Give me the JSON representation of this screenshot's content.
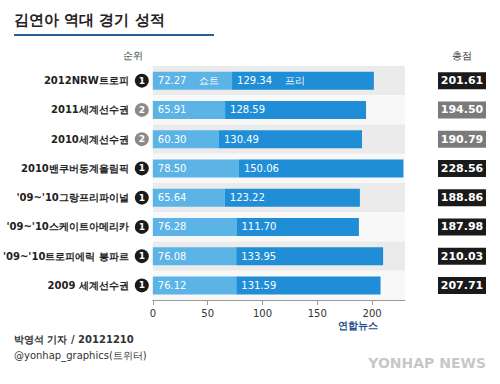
{
  "chart_data": {
    "type": "bar",
    "title": "김연아 역대 경기 성적",
    "orientation": "horizontal",
    "stacked": true,
    "data_labels": true,
    "grid": false,
    "categories": [
      "2012NRW트로피",
      "2011세계선수권",
      "2010세계선수권",
      "2010밴쿠버동계올림픽",
      "'09~'10그랑프리파이널",
      "'09~'10스케이트아메리카",
      "'09~'10트로피에릭 봉파르",
      "2009 세계선수권"
    ],
    "series": [
      {
        "name": "쇼트",
        "color": "#5bb3e6",
        "values": [
          72.27,
          65.91,
          60.3,
          78.5,
          65.64,
          76.28,
          76.08,
          76.12
        ],
        "value_labels": [
          "72.27",
          "65.91",
          "60.30",
          "78.50",
          "65.64",
          "76.28",
          "76.08",
          "76.12"
        ]
      },
      {
        "name": "프리",
        "color": "#1f8ed6",
        "values": [
          129.34,
          128.59,
          130.49,
          150.06,
          123.22,
          111.7,
          133.95,
          131.59
        ],
        "value_labels": [
          "129.34",
          "128.59",
          "130.49",
          "150.06",
          "123.22",
          "111.70",
          "133.95",
          "131.59"
        ]
      }
    ],
    "rank_title": "순위",
    "ranks": [
      1,
      2,
      2,
      1,
      1,
      1,
      1,
      1
    ],
    "total_title": "총점",
    "totals": [
      201.61,
      194.5,
      190.79,
      228.56,
      188.86,
      187.98,
      210.03,
      207.71
    ],
    "total_labels": [
      "201.61",
      "194.50",
      "190.79",
      "228.56",
      "188.86",
      "187.98",
      "210.03",
      "207.71"
    ],
    "xlim": [
      0,
      230
    ],
    "xticks": [
      0,
      50,
      100,
      150,
      200
    ],
    "credits": [
      "박영석 기자 / 20121210",
      "@yonhap_graphics(트위터)"
    ],
    "logo": "연합뉴스",
    "watermark": "YONHAP NEWS"
  }
}
